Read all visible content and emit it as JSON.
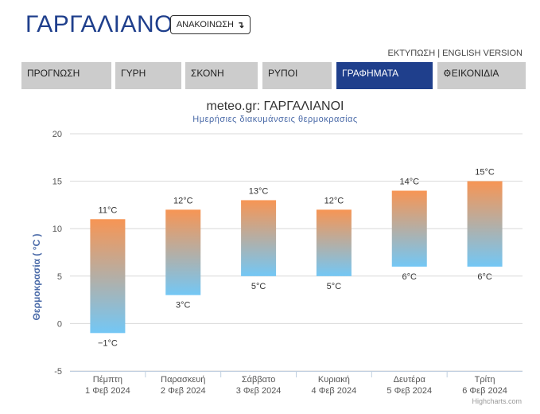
{
  "header": {
    "title": "ΓΑΡΓΑΛΙΑΝΟΙ",
    "announce_label": "ΑΝΑΚΟΙΝΩΣΗ",
    "announce_icon": "arrow-down-icon",
    "print_label": "ΕΚΤΥΠΩΣΗ",
    "separator": "|",
    "english_label": "ENGLISH VERSION"
  },
  "tabs": [
    {
      "label": "ΠΡΟΓΝΩΣΗ",
      "active": false
    },
    {
      "label": "ΓΥΡΗ",
      "active": false
    },
    {
      "label": "ΣΚΟΝΗ",
      "active": false
    },
    {
      "label": "ΡΥΠΟΙ",
      "active": false
    },
    {
      "label": "ΓΡΑΦΗΜΑΤΑ",
      "active": true
    },
    {
      "label": "ΕΙΚΟΝΙΔΙΑ",
      "active": false,
      "icon": "gear-icon"
    }
  ],
  "colors": {
    "brand": "#1f3f8c",
    "tab_bg": "#cccccc",
    "bar_top": "#f79554",
    "bar_bottom": "#73c7f5"
  },
  "chart_data": {
    "type": "columnrange",
    "title": "meteo.gr: ΓΑΡΓΑΛΙΑΝΟΙ",
    "subtitle": "Ημερήσιες διακυμάνσεις θερμοκρασίας",
    "ylabel": "Θερμοκρασία ( °C )",
    "ylim": [
      -5,
      20
    ],
    "yticks": [
      -5,
      0,
      5,
      10,
      15,
      20
    ],
    "grid": true,
    "unit": "°C",
    "credits": "Highcharts.com",
    "categories": [
      {
        "day": "Πέμπτη",
        "date": "1 Φεβ 2024"
      },
      {
        "day": "Παρασκευή",
        "date": "2 Φεβ 2024"
      },
      {
        "day": "Σάββατο",
        "date": "3 Φεβ 2024"
      },
      {
        "day": "Κυριακή",
        "date": "4 Φεβ 2024"
      },
      {
        "day": "Δευτέρα",
        "date": "5 Φεβ 2024"
      },
      {
        "day": "Τρίτη",
        "date": "6 Φεβ 2024"
      }
    ],
    "low": [
      -1,
      3,
      5,
      5,
      6,
      6
    ],
    "high": [
      11,
      12,
      13,
      12,
      14,
      15
    ]
  }
}
